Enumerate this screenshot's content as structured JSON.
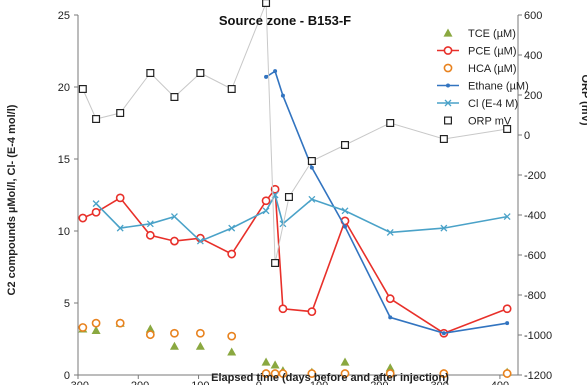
{
  "chart_data": {
    "type": "line",
    "title": "Source zone - B153-F",
    "xlabel": "Elapsed time (days before and after injection)",
    "ylabel": "C2 compounds µMol/l, Cl- (E-4 mol/l)",
    "y2label": "ORP (mV)",
    "xlim": [
      -300,
      430
    ],
    "ylim": [
      0,
      25
    ],
    "y2lim": [
      -1200,
      600
    ],
    "x_ticks": [
      "-300",
      "-200",
      "-100",
      "0",
      "100",
      "200",
      "300",
      "400"
    ],
    "y_ticks": [
      "0",
      "5",
      "10",
      "15",
      "20",
      "25"
    ],
    "y2_ticks": [
      "-1200",
      "-1000",
      "-800",
      "-600",
      "-400",
      "-200",
      "0",
      "200",
      "400",
      "600"
    ],
    "grid": false,
    "legend_position": "top-right",
    "series": [
      {
        "name": "TCE (µM)",
        "axis": "left",
        "marker": "triangle",
        "line": false,
        "color": "#8aa840",
        "x": [
          -292,
          -270,
          -230,
          -180,
          -140,
          -97,
          -45,
          12,
          27,
          40,
          88,
          143,
          218,
          307,
          412
        ],
        "y": [
          3.2,
          3.1,
          3.6,
          3.2,
          2.0,
          2.0,
          1.6,
          0.9,
          0.7,
          0.3,
          0.2,
          0.9,
          0.5,
          0.1,
          0.2
        ]
      },
      {
        "name": "PCE (µM)",
        "axis": "left",
        "marker": "circle",
        "line": true,
        "color": "#e8302a",
        "x": [
          -292,
          -270,
          -230,
          -180,
          -140,
          -97,
          -45,
          12,
          27,
          40,
          88,
          143,
          218,
          307,
          412
        ],
        "y": [
          10.9,
          11.3,
          12.3,
          9.7,
          9.3,
          9.5,
          8.4,
          12.1,
          12.9,
          4.6,
          4.4,
          10.7,
          5.3,
          2.9,
          4.6
        ]
      },
      {
        "name": "HCA (µM)",
        "axis": "left",
        "marker": "circle-open",
        "line": false,
        "color": "#e8821e",
        "x": [
          -292,
          -270,
          -230,
          -180,
          -140,
          -97,
          -45,
          12,
          27,
          40,
          88,
          143,
          218,
          307,
          412
        ],
        "y": [
          3.3,
          3.6,
          3.6,
          2.8,
          2.9,
          2.9,
          2.7,
          0.1,
          0.1,
          0.1,
          0.1,
          0.1,
          0.1,
          0.1,
          0.1
        ]
      },
      {
        "name": "Ethane (µM)",
        "axis": "left",
        "marker": "dot",
        "line": true,
        "color": "#3274c0",
        "x": [
          12,
          27,
          40,
          88,
          143,
          218,
          307,
          412
        ],
        "y": [
          20.7,
          21.1,
          19.4,
          14.4,
          10.3,
          4.0,
          2.9,
          3.6
        ]
      },
      {
        "name": "Cl (E-4 M)",
        "axis": "left",
        "marker": "x",
        "line": true,
        "color": "#4aa2c8",
        "x": [
          -270,
          -230,
          -180,
          -140,
          -97,
          -45,
          12,
          27,
          40,
          88,
          143,
          218,
          307,
          412
        ],
        "y": [
          11.9,
          10.2,
          10.5,
          11.0,
          9.3,
          10.2,
          11.4,
          12.5,
          10.5,
          12.2,
          11.4,
          9.9,
          10.2,
          11.0
        ]
      },
      {
        "name": "ORP mV",
        "axis": "right",
        "marker": "square-open",
        "line": true,
        "color": "#222222",
        "line_color": "#c8c8c8",
        "x": [
          -292,
          -270,
          -230,
          -180,
          -140,
          -97,
          -45,
          12,
          27,
          50,
          88,
          143,
          218,
          307,
          412
        ],
        "y": [
          230,
          80,
          110,
          310,
          190,
          310,
          230,
          660,
          -640,
          -310,
          -130,
          -50,
          60,
          -20,
          30
        ]
      }
    ]
  }
}
